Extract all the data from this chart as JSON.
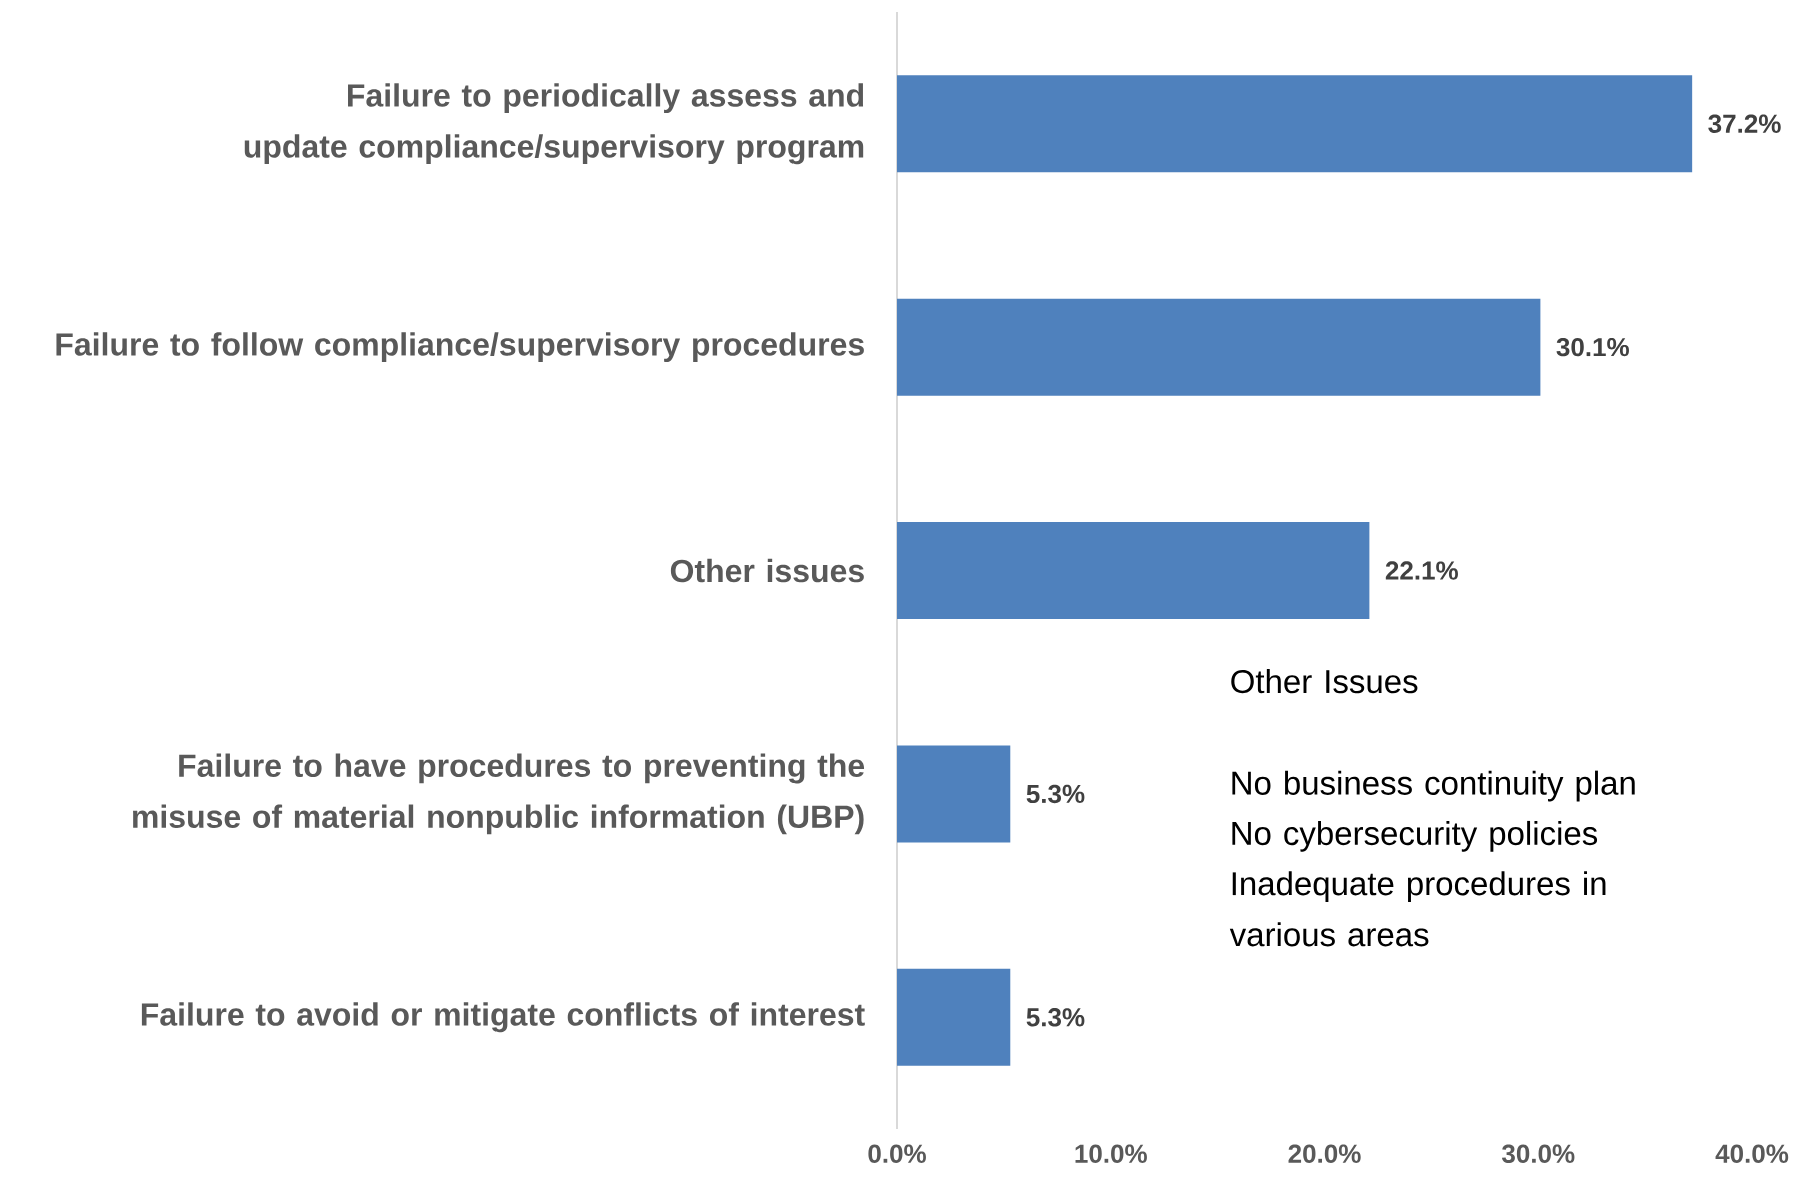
{
  "chart_data": {
    "type": "bar",
    "orientation": "horizontal",
    "categories": [
      "Failure to periodically assess and update compliance/supervisory program",
      "Failure to follow compliance/supervisory procedures",
      "Other issues",
      "Failure to have procedures to preventing the misuse of material nonpublic information (UBP)",
      "Failure to avoid or mitigate conflicts of interest"
    ],
    "values": [
      37.2,
      30.1,
      22.1,
      5.3,
      5.3
    ],
    "value_labels": [
      "37.2%",
      "30.1%",
      "22.1%",
      "5.3%",
      "5.3%"
    ],
    "color": "#4f81bd",
    "xlim": [
      0,
      40
    ],
    "xticks": [
      {
        "value": 0,
        "label": "0.0%"
      },
      {
        "value": 10,
        "label": "10.0%"
      },
      {
        "value": 20,
        "label": "20.0%"
      },
      {
        "value": 30,
        "label": "30.0%"
      },
      {
        "value": 40,
        "label": "40.0%"
      }
    ],
    "grid": false,
    "annotations": [
      "Other Issues",
      "No business continuity plan",
      "No cybersecurity policies",
      "Inadequate procedures in various areas"
    ]
  }
}
